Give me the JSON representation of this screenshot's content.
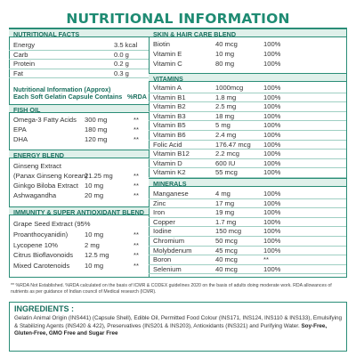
{
  "title": "NUTRITIONAL INFORMATION",
  "left": {
    "facts_header": "NUTRITIONAL FACTS",
    "facts": [
      {
        "name": "Energy",
        "value": "3.5 kcal"
      },
      {
        "name": "Carb",
        "value": "0.0 g"
      },
      {
        "name": "Protein",
        "value": "0.2 g"
      },
      {
        "name": "Fat",
        "value": "0.3 g"
      }
    ],
    "approx_line1": "Nutritional Information (Approx)",
    "approx_line2": "Each Soft Gelatin Capsule Contains",
    "rda_label": "%RDA",
    "fish_oil_header": "FISH OIL",
    "fish_oil": [
      {
        "name": "Omega-3 Fatty Acids",
        "value": "300 mg",
        "rda": "**"
      },
      {
        "name": "EPA",
        "value": "180 mg",
        "rda": "**"
      },
      {
        "name": "DHA",
        "value": "120 mg",
        "rda": "**"
      }
    ],
    "energy_header": "ENERGY BLEND",
    "energy_line1": "Ginseng Extract",
    "energy": [
      {
        "name": "(Panax Ginseng Korean)",
        "value": "21.25 mg",
        "rda": "**"
      },
      {
        "name": "Ginkgo Biloba Extract",
        "value": "10 mg",
        "rda": "**"
      },
      {
        "name": "Ashwagandha",
        "value": "20 mg",
        "rda": "**"
      }
    ],
    "immunity_header": "IMMUNITY & SUPER ANTIOXIDANT BLEND",
    "immunity_line1": "Grape Seed Extract (95%",
    "immunity": [
      {
        "name": "Proanthocyanidin)",
        "value": "10 mg",
        "rda": "**"
      },
      {
        "name": "Lycopene 10%",
        "value": "2 mg",
        "rda": "**"
      },
      {
        "name": "Citrus Bioflavonoids",
        "value": "12.5 mg",
        "rda": "**"
      },
      {
        "name": "Mixed Carotenoids",
        "value": "10 mg",
        "rda": "**"
      }
    ]
  },
  "right": {
    "skin_header": "SKIN & HAIR CARE BLEND",
    "skin": [
      {
        "name": "Biotin",
        "value": "40 mcg",
        "rda": "100%"
      },
      {
        "name": "Vitamin E",
        "value": "10 mg",
        "rda": "100%"
      },
      {
        "name": "Vitamin C",
        "value": "80 mg",
        "rda": "100%"
      }
    ],
    "vitamins_header": "VITAMINS",
    "vitamins": [
      {
        "name": "Vitamin A",
        "value": "1000mcg",
        "rda": "100%"
      },
      {
        "name": "Vitamin B1",
        "value": "1.8 mg",
        "rda": "100%"
      },
      {
        "name": "Vitamin B2",
        "value": "2.5 mg",
        "rda": "100%"
      },
      {
        "name": "Vitamin B3",
        "value": "18 mg",
        "rda": "100%"
      },
      {
        "name": "Vitamin B5",
        "value": "5 mg",
        "rda": "100%"
      },
      {
        "name": "Vitamin B6",
        "value": "2.4 mg",
        "rda": "100%"
      },
      {
        "name": "Folic Acid",
        "value": "176.47 mcg",
        "rda": "100%"
      },
      {
        "name": "Vitamin B12",
        "value": "2.2 mcg",
        "rda": "100%"
      },
      {
        "name": "Vitamin D",
        "value": "600 IU",
        "rda": "100%"
      },
      {
        "name": "Vitamin K2",
        "value": "55 mcg",
        "rda": "100%"
      }
    ],
    "minerals_header": "MINERALS",
    "minerals": [
      {
        "name": "Manganese",
        "value": "4 mg",
        "rda": "100%"
      },
      {
        "name": "Zinc",
        "value": "17 mg",
        "rda": "100%"
      },
      {
        "name": "Iron",
        "value": "19 mg",
        "rda": "100%"
      },
      {
        "name": "Copper",
        "value": "1.7 mg",
        "rda": "100%"
      },
      {
        "name": "Iodine",
        "value": "150 mcg",
        "rda": "100%"
      },
      {
        "name": "Chromium",
        "value": "50 mcg",
        "rda": "100%"
      },
      {
        "name": "Molybdenum",
        "value": "45 mcg",
        "rda": "100%"
      },
      {
        "name": "Boron",
        "value": "40 mcg",
        "rda": "**"
      },
      {
        "name": "Selenium",
        "value": "40 mcg",
        "rda": "100%"
      }
    ]
  },
  "footnote": "** %RDA Not Established. %RDA calculated on the basis of ICMR & CODEX guidelines 2020 on the basis of adults doing moderate work. RDA allowances of nutrients as per guidance of Indian council of Medical research (ICMR).",
  "ingredients": {
    "title": "INGREDIENTS :",
    "text": "Gelatin Animal Origin (INS441) (Capsule Shell), Edible Oil, Permitted Food Colour (INS171, INS124, INS110 & INS133), Emulsifying & Stabilizing Agents (INS420 & 422), Preservatives (INS201 & INS203), Antioxidants (INS321) and Purifying Water.",
    "bold_text": "Soy-Free, Gluten-Free, GMO Free and Sugar Free"
  },
  "colors": {
    "accent": "#1f8b73",
    "band": "#dff0ea"
  }
}
